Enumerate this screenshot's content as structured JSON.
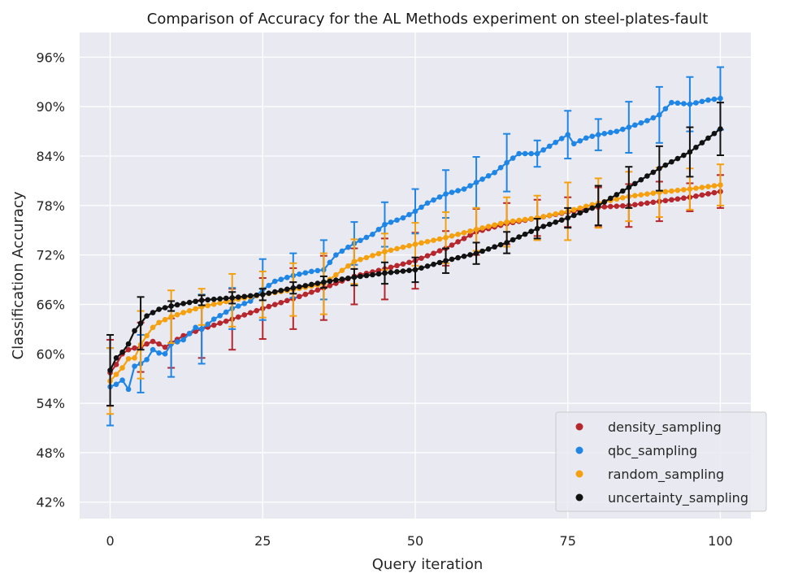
{
  "chart_data": {
    "type": "line",
    "title": "Comparison of Accuracy for the AL Methods experiment on steel-plates-fault",
    "xlabel": "Query iteration",
    "ylabel": "Classification Accuracy",
    "xlim": [
      -5,
      105
    ],
    "ylim": [
      0.4,
      0.99
    ],
    "xticks": [
      0,
      25,
      50,
      75,
      100
    ],
    "xtick_labels": [
      "0",
      "25",
      "50",
      "75",
      "100"
    ],
    "yticks": [
      0.42,
      0.48,
      0.54,
      0.6,
      0.66,
      0.72,
      0.78,
      0.84,
      0.9,
      0.96
    ],
    "ytick_labels": [
      "42%",
      "48%",
      "54%",
      "60%",
      "66%",
      "72%",
      "78%",
      "84%",
      "90%",
      "96%"
    ],
    "grid": true,
    "legend_position": "bottom-right",
    "error_bar_every": 5,
    "series": [
      {
        "name": "density_sampling",
        "color": "#b5272d",
        "anchors_x": [
          0,
          1,
          2,
          3,
          4,
          5,
          6,
          7,
          8,
          9,
          10,
          12,
          15,
          20,
          25,
          30,
          35,
          40,
          45,
          50,
          55,
          60,
          65,
          70,
          75,
          80,
          85,
          90,
          95,
          100
        ],
        "anchors_y": [
          0.577,
          0.587,
          0.6,
          0.605,
          0.607,
          0.608,
          0.612,
          0.615,
          0.612,
          0.608,
          0.613,
          0.622,
          0.63,
          0.642,
          0.655,
          0.667,
          0.68,
          0.694,
          0.703,
          0.713,
          0.728,
          0.748,
          0.758,
          0.765,
          0.772,
          0.778,
          0.78,
          0.785,
          0.79,
          0.797
        ],
        "err_x": [
          0,
          5,
          10,
          15,
          20,
          25,
          30,
          35,
          40,
          45,
          50,
          55,
          60,
          65,
          70,
          75,
          80,
          85,
          90,
          95,
          100
        ],
        "err_half": [
          0.04,
          0.03,
          0.03,
          0.035,
          0.037,
          0.037,
          0.037,
          0.039,
          0.034,
          0.037,
          0.034,
          0.021,
          0.028,
          0.025,
          0.022,
          0.018,
          0.024,
          0.026,
          0.024,
          0.017,
          0.02
        ]
      },
      {
        "name": "qbc_sampling",
        "color": "#1f86e6",
        "anchors_x": [
          0,
          1,
          2,
          3,
          4,
          5,
          6,
          7,
          8,
          9,
          10,
          12,
          14,
          15,
          17,
          20,
          23,
          25,
          27,
          30,
          33,
          35,
          37,
          40,
          43,
          45,
          48,
          50,
          52,
          55,
          58,
          60,
          63,
          65,
          67,
          70,
          72,
          75,
          76,
          78,
          80,
          83,
          85,
          88,
          90,
          92,
          95,
          98,
          100
        ],
        "anchors_y": [
          0.56,
          0.563,
          0.568,
          0.557,
          0.585,
          0.588,
          0.593,
          0.605,
          0.601,
          0.6,
          0.612,
          0.617,
          0.632,
          0.63,
          0.642,
          0.655,
          0.664,
          0.678,
          0.688,
          0.695,
          0.7,
          0.702,
          0.72,
          0.734,
          0.745,
          0.757,
          0.765,
          0.773,
          0.783,
          0.794,
          0.8,
          0.808,
          0.82,
          0.832,
          0.843,
          0.843,
          0.852,
          0.866,
          0.855,
          0.862,
          0.866,
          0.87,
          0.875,
          0.883,
          0.89,
          0.905,
          0.903,
          0.908,
          0.91
        ],
        "err_x": [
          0,
          5,
          10,
          15,
          20,
          25,
          30,
          35,
          40,
          45,
          50,
          55,
          60,
          65,
          70,
          75,
          80,
          85,
          90,
          95,
          100
        ],
        "err_half": [
          0.047,
          0.035,
          0.04,
          0.042,
          0.025,
          0.037,
          0.027,
          0.036,
          0.026,
          0.027,
          0.027,
          0.029,
          0.031,
          0.035,
          0.016,
          0.029,
          0.019,
          0.031,
          0.034,
          0.033,
          0.038
        ]
      },
      {
        "name": "random_sampling",
        "color": "#f5a10f",
        "anchors_x": [
          0,
          1,
          2,
          3,
          4,
          5,
          6,
          7,
          8,
          10,
          12,
          15,
          20,
          25,
          30,
          35,
          40,
          45,
          50,
          55,
          60,
          65,
          70,
          75,
          80,
          85,
          90,
          95,
          100
        ],
        "anchors_y": [
          0.567,
          0.575,
          0.583,
          0.594,
          0.595,
          0.611,
          0.622,
          0.632,
          0.638,
          0.645,
          0.65,
          0.657,
          0.665,
          0.672,
          0.678,
          0.685,
          0.712,
          0.724,
          0.733,
          0.741,
          0.751,
          0.76,
          0.765,
          0.773,
          0.783,
          0.791,
          0.796,
          0.8,
          0.805
        ],
        "err_x": [
          0,
          5,
          10,
          15,
          20,
          25,
          30,
          35,
          40,
          45,
          50,
          55,
          60,
          65,
          70,
          75,
          80,
          85,
          90,
          95,
          100
        ],
        "err_half": [
          0.04,
          0.041,
          0.032,
          0.022,
          0.032,
          0.028,
          0.032,
          0.037,
          0.027,
          0.022,
          0.026,
          0.031,
          0.026,
          0.03,
          0.027,
          0.035,
          0.03,
          0.03,
          0.03,
          0.025,
          0.025
        ]
      },
      {
        "name": "uncertainty_sampling",
        "color": "#111111",
        "anchors_x": [
          0,
          1,
          2,
          3,
          4,
          5,
          6,
          7,
          8,
          10,
          12,
          15,
          20,
          25,
          30,
          35,
          40,
          45,
          50,
          55,
          60,
          65,
          70,
          75,
          80,
          85,
          90,
          95,
          100
        ],
        "anchors_y": [
          0.58,
          0.595,
          0.602,
          0.612,
          0.628,
          0.637,
          0.646,
          0.65,
          0.654,
          0.658,
          0.661,
          0.665,
          0.668,
          0.672,
          0.68,
          0.687,
          0.693,
          0.698,
          0.702,
          0.713,
          0.722,
          0.735,
          0.752,
          0.765,
          0.78,
          0.802,
          0.825,
          0.845,
          0.873
        ],
        "err_x": [
          0,
          5,
          10,
          15,
          20,
          25,
          30,
          35,
          40,
          45,
          50,
          55,
          60,
          65,
          70,
          75,
          80,
          85,
          90,
          95,
          100
        ],
        "err_half": [
          0.043,
          0.032,
          0.006,
          0.006,
          0.007,
          0.007,
          0.007,
          0.007,
          0.01,
          0.013,
          0.015,
          0.015,
          0.013,
          0.013,
          0.012,
          0.012,
          0.024,
          0.025,
          0.027,
          0.03,
          0.032
        ]
      }
    ]
  }
}
